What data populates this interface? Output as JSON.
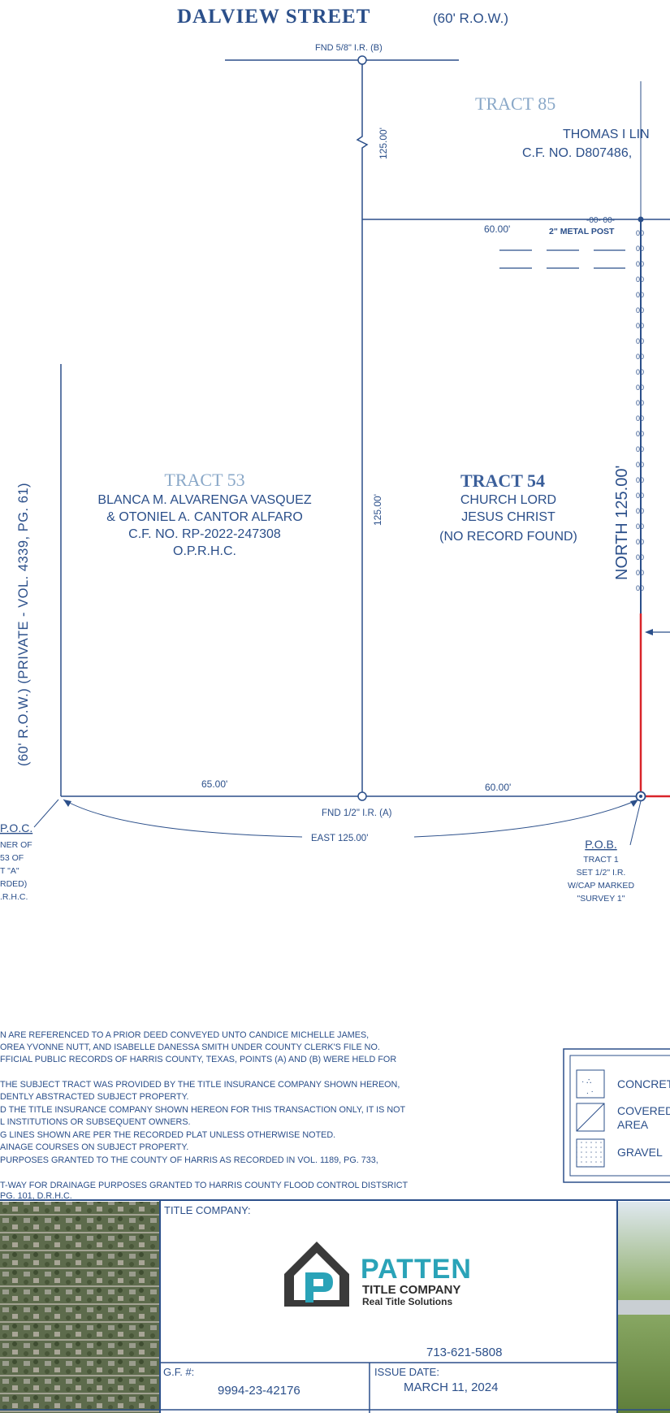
{
  "street": {
    "name": "DALVIEW STREET",
    "row": "(60' R.O.W.)"
  },
  "left_road": "(60' R.O.W.) (PRIVATE - VOL. 4339, PG. 61)",
  "monuments": {
    "top": "FND 5/8\" I.R. (B)",
    "mid_bottom": "FND 1/2\" I.R. (A)",
    "metal_post": "2\" METAL POST"
  },
  "dimensions": {
    "top_break": "125.00'",
    "mid_vertical": "125.00'",
    "north": "NORTH 125.00'",
    "tract54_top": "60.00'",
    "bottom_left": "65.00'",
    "bottom_right": "60.00'",
    "east": "EAST 125.00'"
  },
  "tract85": {
    "label": "TRACT 85",
    "owner": "THOMAS I LIN",
    "cf": "C.F. NO. D807486,"
  },
  "tract53": {
    "label": "TRACT 53",
    "line1": "BLANCA M. ALVARENGA VASQUEZ",
    "line2": "& OTONIEL A. CANTOR ALFARO",
    "line3": "C.F. NO. RP-2022-247308",
    "line4": "O.P.R.H.C."
  },
  "tract54": {
    "label": "TRACT 54",
    "line1": "CHURCH LORD",
    "line2": "JESUS CHRIST",
    "line3": "(NO RECORD FOUND)"
  },
  "poc": [
    "P.O.C.",
    "NER OF",
    "53 OF",
    "T \"A\"",
    "RDED)",
    ".R.H.C."
  ],
  "pob": [
    "P.O.B.",
    "TRACT 1",
    "SET 1/2\" I.R.",
    "W/CAP MARKED",
    "\"SURVEY 1\""
  ],
  "notes": [
    "N ARE REFERENCED TO A PRIOR DEED CONVEYED UNTO CANDICE MICHELLE JAMES,",
    "OREA YVONNE NUTT, AND ISABELLE DANESSA SMITH UNDER COUNTY CLERK'S FILE NO.",
    "FFICIAL PUBLIC RECORDS OF HARRIS COUNTY, TEXAS, POINTS (A) AND (B) WERE HELD FOR",
    "",
    "THE SUBJECT TRACT WAS PROVIDED BY THE TITLE INSURANCE COMPANY SHOWN HEREON,",
    "DENTLY ABSTRACTED SUBJECT PROPERTY.",
    "D THE TITLE INSURANCE COMPANY SHOWN HEREON FOR THIS TRANSACTION ONLY, IT IS NOT",
    "L INSTITUTIONS OR SUBSEQUENT OWNERS.",
    "G LINES SHOWN ARE PER THE RECORDED PLAT UNLESS OTHERWISE NOTED.",
    "AINAGE COURSES ON SUBJECT PROPERTY.",
    "PURPOSES GRANTED TO THE COUNTY OF HARRIS AS RECORDED IN VOL. 1189, PG. 733,",
    "",
    "T-WAY FOR DRAINAGE PURPOSES GRANTED TO HARRIS COUNTY FLOOD CONTROL DISTSRICT",
    "PG. 101, D.R.H.C."
  ],
  "legend": {
    "concrete": "CONCRET",
    "covered1": "COVERED",
    "covered2": "AREA",
    "gravel": "GRAVEL"
  },
  "title_block": {
    "title_company_label": "TITLE COMPANY:",
    "logo_main": "PATTEN",
    "logo_sub": "TITLE COMPANY",
    "logo_tag": "Real Title Solutions",
    "phone": "713-621-5808",
    "gf_label": "G.F. #:",
    "gf_value": "9994-23-42176",
    "issue_label": "ISSUE DATE:",
    "issue_value": "MARCH 11, 2024"
  },
  "colors": {
    "line": "#2b4f8a",
    "tract": "#8aa8c8",
    "boundary": "#d9242a",
    "logo_teal": "#2aa3b8"
  }
}
